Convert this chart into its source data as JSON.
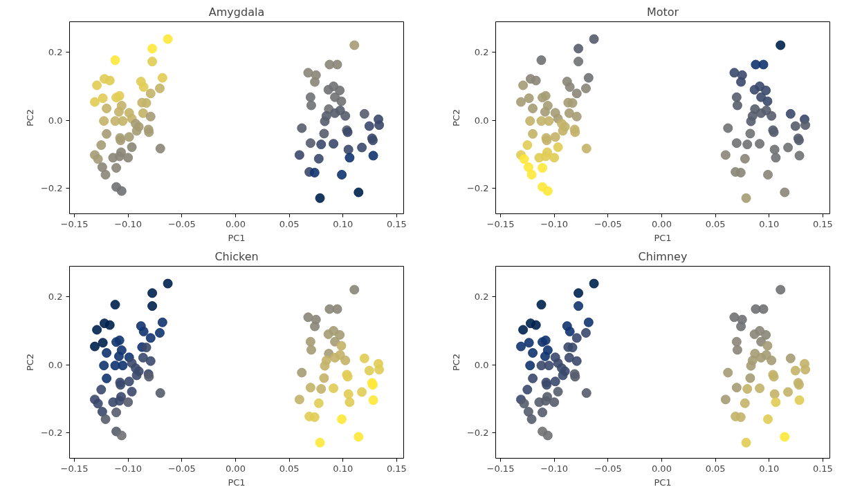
{
  "chart_data": [
    {
      "type": "scatter",
      "title": "Amygdala",
      "xlabel": "PC1",
      "ylabel": "PC2",
      "marker": "circle",
      "x": [
        -0.063,
        -0.0775,
        -0.0775,
        -0.112,
        -0.129,
        -0.122,
        -0.117,
        -0.088,
        -0.0855,
        -0.068,
        -0.0705,
        -0.079,
        -0.131,
        -0.1235,
        -0.12,
        -0.111,
        -0.108,
        -0.106,
        -0.1085,
        -0.099,
        -0.087,
        -0.083,
        -0.086,
        -0.079,
        -0.1225,
        -0.112,
        -0.105,
        -0.0965,
        -0.093,
        -0.09,
        -0.081,
        -0.0806,
        -0.092,
        -0.12,
        -0.1075,
        -0.107,
        -0.099,
        -0.0965,
        -0.07,
        -0.125,
        -0.131,
        -0.128,
        -0.114,
        -0.108,
        -0.1065,
        -0.1,
        -0.124,
        -0.121,
        -0.111,
        -0.111,
        -0.106,
        0.1106,
        0.0875,
        0.0947,
        0.0676,
        0.0749,
        0.0738,
        0.0864,
        0.0912,
        0.097,
        0.0925,
        0.0985,
        0.0698,
        0.0705,
        0.0868,
        0.0925,
        0.0974,
        0.1022,
        0.0846,
        0.0831,
        0.12,
        0.133,
        0.1337,
        0.1245,
        0.0617,
        0.0824,
        0.1036,
        0.1044,
        0.1271,
        0.1278,
        0.0698,
        0.0797,
        0.0912,
        0.1051,
        0.1176,
        0.0595,
        0.0775,
        0.1062,
        0.1282,
        0.0687,
        0.0736,
        0.0989,
        0.0786,
        0.1145
      ],
      "values": [
        0.239,
        0.211,
        0.173,
        0.177,
        0.103,
        0.122,
        0.117,
        0.114,
        0.098,
        0.125,
        0.094,
        0.079,
        0.054,
        0.065,
        0.035,
        0.067,
        0.072,
        0.043,
        0.025,
        0.022,
        0.052,
        0.051,
        0.021,
        0.011,
        -0.002,
        -0.002,
        -0.002,
        0.005,
        -0.01,
        -0.019,
        -0.027,
        -0.035,
        -0.031,
        -0.04,
        -0.052,
        -0.059,
        -0.049,
        -0.079,
        -0.083,
        -0.073,
        -0.102,
        -0.114,
        -0.11,
        -0.106,
        -0.094,
        -0.11,
        -0.138,
        -0.16,
        -0.14,
        -0.196,
        -0.208,
        0.221,
        0.164,
        0.164,
        0.14,
        0.133,
        0.113,
        0.09,
        0.1,
        0.088,
        0.068,
        0.056,
        0.068,
        0.044,
        0.033,
        0.021,
        0.029,
        0.013,
        0.013,
        -0.003,
        0.019,
        0.003,
        -0.014,
        -0.017,
        -0.023,
        -0.039,
        -0.029,
        -0.035,
        -0.053,
        -0.059,
        -0.067,
        -0.071,
        -0.069,
        -0.086,
        -0.08,
        -0.102,
        -0.113,
        -0.11,
        -0.104,
        -0.152,
        -0.154,
        -0.16,
        -0.229,
        -0.212
      ],
      "colors": [
        "#fee838",
        "#fee838",
        "#e1cc55",
        "#fee838",
        "#e1cc55",
        "#e1cc55",
        "#e1cc55",
        "#e1cc55",
        "#e1cc55",
        "#e1cc55",
        "#c3b369",
        "#c3b369",
        "#e1cc55",
        "#e1cc55",
        "#c3b369",
        "#e1cc55",
        "#e1cc55",
        "#c3b369",
        "#c3b369",
        "#c3b369",
        "#c3b369",
        "#c3b369",
        "#c3b369",
        "#a59c74",
        "#c3b369",
        "#c3b369",
        "#c3b369",
        "#c3b369",
        "#a59c74",
        "#a59c74",
        "#a59c74",
        "#a59c74",
        "#a59c74",
        "#a59c74",
        "#a59c74",
        "#a59c74",
        "#a59c74",
        "#8a8678",
        "#8a8678",
        "#a59c74",
        "#a59c74",
        "#a59c74",
        "#8a8678",
        "#8a8678",
        "#8a8678",
        "#8a8678",
        "#8a8678",
        "#8a8678",
        "#8a8678",
        "#707173",
        "#707173",
        "#a59c74",
        "#8a8678",
        "#8a8678",
        "#8a8678",
        "#8a8678",
        "#8a8678",
        "#707173",
        "#707173",
        "#707173",
        "#707173",
        "#707173",
        "#707173",
        "#707173",
        "#707173",
        "#575d6d",
        "#575d6d",
        "#575d6d",
        "#575d6d",
        "#575d6d",
        "#575d6d",
        "#3b496c",
        "#3b496c",
        "#3b496c",
        "#575d6d",
        "#575d6d",
        "#575d6d",
        "#3b496c",
        "#3b496c",
        "#3b496c",
        "#575d6d",
        "#3b496c",
        "#3b496c",
        "#3b496c",
        "#3b496c",
        "#3b496c",
        "#3b496c",
        "#123570",
        "#123570",
        "#3b496c",
        "#123570",
        "#123570",
        "#00224e",
        "#00224e"
      ],
      "xlim": [
        -0.1545,
        0.1565
      ],
      "ylim": [
        -0.275,
        0.29
      ],
      "xticks": [
        {
          "value": -0.15,
          "label": "−0.15"
        },
        {
          "value": -0.1,
          "label": "−0.10"
        },
        {
          "value": -0.05,
          "label": "−0.05"
        },
        {
          "value": 0,
          "label": "0.00"
        },
        {
          "value": 0.05,
          "label": "0.05"
        },
        {
          "value": 0.1,
          "label": "0.10"
        },
        {
          "value": 0.15,
          "label": "0.15"
        }
      ],
      "yticks": [
        {
          "value": -0.2,
          "label": "−0.2"
        },
        {
          "value": 0,
          "label": "0.0"
        },
        {
          "value": 0.2,
          "label": "0.2"
        }
      ]
    },
    {
      "type": "scatter",
      "title": "Motor",
      "xlabel": "PC1",
      "ylabel": "PC2",
      "marker": "circle",
      "x": [
        -0.063,
        -0.0775,
        -0.0775,
        -0.112,
        -0.129,
        -0.122,
        -0.117,
        -0.088,
        -0.0855,
        -0.068,
        -0.0705,
        -0.079,
        -0.131,
        -0.1235,
        -0.12,
        -0.111,
        -0.108,
        -0.106,
        -0.1085,
        -0.099,
        -0.087,
        -0.083,
        -0.086,
        -0.079,
        -0.1225,
        -0.112,
        -0.105,
        -0.0965,
        -0.093,
        -0.09,
        -0.081,
        -0.0806,
        -0.092,
        -0.12,
        -0.1075,
        -0.107,
        -0.099,
        -0.0965,
        -0.07,
        -0.125,
        -0.131,
        -0.128,
        -0.114,
        -0.108,
        -0.1065,
        -0.1,
        -0.124,
        -0.121,
        -0.111,
        -0.111,
        -0.106,
        0.1106,
        0.0875,
        0.0947,
        0.0676,
        0.0749,
        0.0738,
        0.0864,
        0.0912,
        0.097,
        0.0925,
        0.0985,
        0.0698,
        0.0705,
        0.0868,
        0.0925,
        0.0974,
        0.1022,
        0.0846,
        0.0831,
        0.12,
        0.133,
        0.1337,
        0.1245,
        0.0617,
        0.0824,
        0.1036,
        0.1044,
        0.1271,
        0.1278,
        0.0698,
        0.0797,
        0.0912,
        0.1051,
        0.1176,
        0.0595,
        0.0775,
        0.1062,
        0.1282,
        0.0687,
        0.0736,
        0.0989,
        0.0786,
        0.1145
      ],
      "values": [
        0.239,
        0.211,
        0.173,
        0.177,
        0.103,
        0.122,
        0.117,
        0.114,
        0.098,
        0.125,
        0.094,
        0.079,
        0.054,
        0.065,
        0.035,
        0.067,
        0.072,
        0.043,
        0.025,
        0.022,
        0.052,
        0.051,
        0.021,
        0.011,
        -0.002,
        -0.002,
        -0.002,
        0.005,
        -0.01,
        -0.019,
        -0.027,
        -0.035,
        -0.031,
        -0.04,
        -0.052,
        -0.059,
        -0.049,
        -0.079,
        -0.083,
        -0.073,
        -0.102,
        -0.114,
        -0.11,
        -0.106,
        -0.094,
        -0.11,
        -0.138,
        -0.16,
        -0.14,
        -0.196,
        -0.208,
        0.221,
        0.164,
        0.164,
        0.14,
        0.133,
        0.113,
        0.09,
        0.1,
        0.088,
        0.068,
        0.056,
        0.068,
        0.044,
        0.033,
        0.021,
        0.029,
        0.013,
        0.013,
        -0.003,
        0.019,
        0.003,
        -0.014,
        -0.017,
        -0.023,
        -0.039,
        -0.029,
        -0.035,
        -0.053,
        -0.059,
        -0.067,
        -0.071,
        -0.069,
        -0.086,
        -0.08,
        -0.102,
        -0.113,
        -0.11,
        -0.104,
        -0.152,
        -0.154,
        -0.16,
        -0.229,
        -0.212
      ],
      "colors": [
        "#575d6d",
        "#575d6d",
        "#707173",
        "#707173",
        "#a59c74",
        "#8a8678",
        "#8a8678",
        "#8a8678",
        "#8a8678",
        "#707173",
        "#8a8678",
        "#8a8678",
        "#a59c74",
        "#a59c74",
        "#a59c74",
        "#a59c74",
        "#a59c74",
        "#a59c74",
        "#a59c74",
        "#a59c74",
        "#a59c74",
        "#a59c74",
        "#a59c74",
        "#a59c74",
        "#c3b369",
        "#c3b369",
        "#c3b369",
        "#a59c74",
        "#c3b369",
        "#c3b369",
        "#c3b369",
        "#c3b369",
        "#c3b369",
        "#c3b369",
        "#c3b369",
        "#c3b369",
        "#c3b369",
        "#e1cc55",
        "#c3b369",
        "#e1cc55",
        "#e1cc55",
        "#fee838",
        "#e1cc55",
        "#e1cc55",
        "#e1cc55",
        "#e1cc55",
        "#fee838",
        "#fee838",
        "#fee838",
        "#fee838",
        "#fee838",
        "#00224e",
        "#123570",
        "#123570",
        "#3b496c",
        "#3b496c",
        "#3b496c",
        "#3b496c",
        "#3b496c",
        "#3b496c",
        "#3b496c",
        "#3b496c",
        "#575d6d",
        "#575d6d",
        "#575d6d",
        "#575d6d",
        "#575d6d",
        "#575d6d",
        "#575d6d",
        "#575d6d",
        "#3b496c",
        "#3b496c",
        "#575d6d",
        "#575d6d",
        "#707173",
        "#707173",
        "#575d6d",
        "#575d6d",
        "#575d6d",
        "#575d6d",
        "#707173",
        "#707173",
        "#707173",
        "#707173",
        "#707173",
        "#8a8678",
        "#8a8678",
        "#707173",
        "#707173",
        "#8a8678",
        "#8a8678",
        "#8a8678",
        "#a59c74",
        "#8a8678"
      ],
      "xlim": [
        -0.1545,
        0.1565
      ],
      "ylim": [
        -0.275,
        0.29
      ],
      "xticks": [
        {
          "value": -0.15,
          "label": "−0.15"
        },
        {
          "value": -0.1,
          "label": "−0.10"
        },
        {
          "value": -0.05,
          "label": "−0.05"
        },
        {
          "value": 0,
          "label": "0.00"
        },
        {
          "value": 0.05,
          "label": "0.05"
        },
        {
          "value": 0.1,
          "label": "0.10"
        },
        {
          "value": 0.15,
          "label": "0.15"
        }
      ],
      "yticks": [
        {
          "value": -0.2,
          "label": "−0.2"
        },
        {
          "value": 0,
          "label": "0.0"
        },
        {
          "value": 0.2,
          "label": "0.2"
        }
      ]
    },
    {
      "type": "scatter",
      "title": "Chicken",
      "xlabel": "PC1",
      "ylabel": "PC2",
      "marker": "circle",
      "x": [
        -0.063,
        -0.0775,
        -0.0775,
        -0.112,
        -0.129,
        -0.122,
        -0.117,
        -0.088,
        -0.0855,
        -0.068,
        -0.0705,
        -0.079,
        -0.131,
        -0.1235,
        -0.12,
        -0.111,
        -0.108,
        -0.106,
        -0.1085,
        -0.099,
        -0.087,
        -0.083,
        -0.086,
        -0.079,
        -0.1225,
        -0.112,
        -0.105,
        -0.0965,
        -0.093,
        -0.09,
        -0.081,
        -0.0806,
        -0.092,
        -0.12,
        -0.1075,
        -0.107,
        -0.099,
        -0.0965,
        -0.07,
        -0.125,
        -0.131,
        -0.128,
        -0.114,
        -0.108,
        -0.1065,
        -0.1,
        -0.124,
        -0.121,
        -0.111,
        -0.111,
        -0.106,
        0.1106,
        0.0875,
        0.0947,
        0.0676,
        0.0749,
        0.0738,
        0.0864,
        0.0912,
        0.097,
        0.0925,
        0.0985,
        0.0698,
        0.0705,
        0.0868,
        0.0925,
        0.0974,
        0.1022,
        0.0846,
        0.0831,
        0.12,
        0.133,
        0.1337,
        0.1245,
        0.0617,
        0.0824,
        0.1036,
        0.1044,
        0.1271,
        0.1278,
        0.0698,
        0.0797,
        0.0912,
        0.1051,
        0.1176,
        0.0595,
        0.0775,
        0.1062,
        0.1282,
        0.0687,
        0.0736,
        0.0989,
        0.0786,
        0.1145
      ],
      "values": [
        0.239,
        0.211,
        0.173,
        0.177,
        0.103,
        0.122,
        0.117,
        0.114,
        0.098,
        0.125,
        0.094,
        0.079,
        0.054,
        0.065,
        0.035,
        0.067,
        0.072,
        0.043,
        0.025,
        0.022,
        0.052,
        0.051,
        0.021,
        0.011,
        -0.002,
        -0.002,
        -0.002,
        0.005,
        -0.01,
        -0.019,
        -0.027,
        -0.035,
        -0.031,
        -0.04,
        -0.052,
        -0.059,
        -0.049,
        -0.079,
        -0.083,
        -0.073,
        -0.102,
        -0.114,
        -0.11,
        -0.106,
        -0.094,
        -0.11,
        -0.138,
        -0.16,
        -0.14,
        -0.196,
        -0.208,
        0.221,
        0.164,
        0.164,
        0.14,
        0.133,
        0.113,
        0.09,
        0.1,
        0.088,
        0.068,
        0.056,
        0.068,
        0.044,
        0.033,
        0.021,
        0.029,
        0.013,
        0.013,
        -0.003,
        0.019,
        0.003,
        -0.014,
        -0.017,
        -0.023,
        -0.039,
        -0.029,
        -0.035,
        -0.053,
        -0.059,
        -0.067,
        -0.071,
        -0.069,
        -0.086,
        -0.08,
        -0.102,
        -0.113,
        -0.11,
        -0.104,
        -0.152,
        -0.154,
        -0.16,
        -0.229,
        -0.212
      ],
      "colors": [
        "#00224e",
        "#00224e",
        "#00224e",
        "#00224e",
        "#00224e",
        "#00224e",
        "#00224e",
        "#123570",
        "#123570",
        "#123570",
        "#123570",
        "#123570",
        "#00224e",
        "#00224e",
        "#123570",
        "#123570",
        "#123570",
        "#123570",
        "#123570",
        "#123570",
        "#123570",
        "#3b496c",
        "#3b496c",
        "#3b496c",
        "#123570",
        "#123570",
        "#123570",
        "#3b496c",
        "#3b496c",
        "#3b496c",
        "#3b496c",
        "#575d6d",
        "#3b496c",
        "#123570",
        "#3b496c",
        "#3b496c",
        "#3b496c",
        "#3b496c",
        "#575d6d",
        "#3b496c",
        "#3b496c",
        "#3b496c",
        "#3b496c",
        "#3b496c",
        "#3b496c",
        "#575d6d",
        "#3b496c",
        "#575d6d",
        "#575d6d",
        "#575d6d",
        "#707173",
        "#8a8678",
        "#8a8678",
        "#8a8678",
        "#8a8678",
        "#8a8678",
        "#8a8678",
        "#a59c74",
        "#a59c74",
        "#a59c74",
        "#a59c74",
        "#c3b369",
        "#a59c74",
        "#a59c74",
        "#a59c74",
        "#c3b369",
        "#c3b369",
        "#c3b369",
        "#c3b369",
        "#c3b369",
        "#e1cc55",
        "#e1cc55",
        "#e1cc55",
        "#e1cc55",
        "#a59c74",
        "#c3b369",
        "#e1cc55",
        "#e1cc55",
        "#fee838",
        "#fee838",
        "#c3b369",
        "#c3b369",
        "#e1cc55",
        "#e1cc55",
        "#e1cc55",
        "#c3b369",
        "#e1cc55",
        "#e1cc55",
        "#fee838",
        "#e1cc55",
        "#e1cc55",
        "#fee838",
        "#fee838",
        "#fee838"
      ],
      "xlim": [
        -0.1545,
        0.1565
      ],
      "ylim": [
        -0.275,
        0.29
      ],
      "xticks": [
        {
          "value": -0.15,
          "label": "−0.15"
        },
        {
          "value": -0.1,
          "label": "−0.10"
        },
        {
          "value": -0.05,
          "label": "−0.05"
        },
        {
          "value": 0,
          "label": "0.00"
        },
        {
          "value": 0.05,
          "label": "0.05"
        },
        {
          "value": 0.1,
          "label": "0.10"
        },
        {
          "value": 0.15,
          "label": "0.15"
        }
      ],
      "yticks": [
        {
          "value": -0.2,
          "label": "−0.2"
        },
        {
          "value": 0,
          "label": "0.0"
        },
        {
          "value": 0.2,
          "label": "0.2"
        }
      ]
    },
    {
      "type": "scatter",
      "title": "Chimney",
      "xlabel": "PC1",
      "ylabel": "PC2",
      "marker": "circle",
      "x": [
        -0.063,
        -0.0775,
        -0.0775,
        -0.112,
        -0.129,
        -0.122,
        -0.117,
        -0.088,
        -0.0855,
        -0.068,
        -0.0705,
        -0.079,
        -0.131,
        -0.1235,
        -0.12,
        -0.111,
        -0.108,
        -0.106,
        -0.1085,
        -0.099,
        -0.087,
        -0.083,
        -0.086,
        -0.079,
        -0.1225,
        -0.112,
        -0.105,
        -0.0965,
        -0.093,
        -0.09,
        -0.081,
        -0.0806,
        -0.092,
        -0.12,
        -0.1075,
        -0.107,
        -0.099,
        -0.0965,
        -0.07,
        -0.125,
        -0.131,
        -0.128,
        -0.114,
        -0.108,
        -0.1065,
        -0.1,
        -0.124,
        -0.121,
        -0.111,
        -0.111,
        -0.106,
        0.1106,
        0.0875,
        0.0947,
        0.0676,
        0.0749,
        0.0738,
        0.0864,
        0.0912,
        0.097,
        0.0925,
        0.0985,
        0.0698,
        0.0705,
        0.0868,
        0.0925,
        0.0974,
        0.1022,
        0.0846,
        0.0831,
        0.12,
        0.133,
        0.1337,
        0.1245,
        0.0617,
        0.0824,
        0.1036,
        0.1044,
        0.1271,
        0.1278,
        0.0698,
        0.0797,
        0.0912,
        0.1051,
        0.1176,
        0.0595,
        0.0775,
        0.1062,
        0.1282,
        0.0687,
        0.0736,
        0.0989,
        0.0786,
        0.1145
      ],
      "values": [
        0.239,
        0.211,
        0.173,
        0.177,
        0.103,
        0.122,
        0.117,
        0.114,
        0.098,
        0.125,
        0.094,
        0.079,
        0.054,
        0.065,
        0.035,
        0.067,
        0.072,
        0.043,
        0.025,
        0.022,
        0.052,
        0.051,
        0.021,
        0.011,
        -0.002,
        -0.002,
        -0.002,
        0.005,
        -0.01,
        -0.019,
        -0.027,
        -0.035,
        -0.031,
        -0.04,
        -0.052,
        -0.059,
        -0.049,
        -0.079,
        -0.083,
        -0.073,
        -0.102,
        -0.114,
        -0.11,
        -0.106,
        -0.094,
        -0.11,
        -0.138,
        -0.16,
        -0.14,
        -0.196,
        -0.208,
        0.221,
        0.164,
        0.164,
        0.14,
        0.133,
        0.113,
        0.09,
        0.1,
        0.088,
        0.068,
        0.056,
        0.068,
        0.044,
        0.033,
        0.021,
        0.029,
        0.013,
        0.013,
        -0.003,
        0.019,
        0.003,
        -0.014,
        -0.017,
        -0.023,
        -0.039,
        -0.029,
        -0.035,
        -0.053,
        -0.059,
        -0.067,
        -0.071,
        -0.069,
        -0.086,
        -0.08,
        -0.102,
        -0.113,
        -0.11,
        -0.104,
        -0.152,
        -0.154,
        -0.16,
        -0.229,
        -0.212
      ],
      "colors": [
        "#00224e",
        "#00224e",
        "#123570",
        "#00224e",
        "#00224e",
        "#00224e",
        "#00224e",
        "#123570",
        "#123570",
        "#123570",
        "#3b496c",
        "#3b496c",
        "#123570",
        "#123570",
        "#123570",
        "#123570",
        "#123570",
        "#123570",
        "#123570",
        "#3b496c",
        "#3b496c",
        "#3b496c",
        "#3b496c",
        "#3b496c",
        "#123570",
        "#3b496c",
        "#3b496c",
        "#3b496c",
        "#3b496c",
        "#3b496c",
        "#575d6d",
        "#575d6d",
        "#3b496c",
        "#3b496c",
        "#3b496c",
        "#3b496c",
        "#3b496c",
        "#575d6d",
        "#575d6d",
        "#3b496c",
        "#3b496c",
        "#575d6d",
        "#575d6d",
        "#575d6d",
        "#575d6d",
        "#575d6d",
        "#575d6d",
        "#575d6d",
        "#575d6d",
        "#707173",
        "#707173",
        "#707173",
        "#707173",
        "#707173",
        "#707173",
        "#707173",
        "#707173",
        "#8a8678",
        "#8a8678",
        "#8a8678",
        "#8a8678",
        "#a59c74",
        "#8a8678",
        "#8a8678",
        "#a59c74",
        "#a59c74",
        "#a59c74",
        "#a59c74",
        "#a59c74",
        "#a59c74",
        "#a59c74",
        "#c3b369",
        "#c3b369",
        "#c3b369",
        "#a59c74",
        "#a59c74",
        "#c3b369",
        "#c3b369",
        "#c3b369",
        "#c3b369",
        "#a59c74",
        "#c3b369",
        "#c3b369",
        "#c3b369",
        "#c3b369",
        "#a59c74",
        "#c3b369",
        "#e1cc55",
        "#e1cc55",
        "#c3b369",
        "#c3b369",
        "#e1cc55",
        "#e1cc55",
        "#fee838"
      ],
      "xlim": [
        -0.1545,
        0.1565
      ],
      "ylim": [
        -0.275,
        0.29
      ],
      "xticks": [
        {
          "value": -0.15,
          "label": "−0.15"
        },
        {
          "value": -0.1,
          "label": "−0.10"
        },
        {
          "value": -0.05,
          "label": "−0.05"
        },
        {
          "value": 0,
          "label": "0.00"
        },
        {
          "value": 0.05,
          "label": "0.05"
        },
        {
          "value": 0.1,
          "label": "0.10"
        },
        {
          "value": 0.15,
          "label": "0.15"
        }
      ],
      "yticks": [
        {
          "value": -0.2,
          "label": "−0.2"
        },
        {
          "value": 0,
          "label": "0.0"
        },
        {
          "value": 0.2,
          "label": "0.2"
        }
      ]
    }
  ]
}
